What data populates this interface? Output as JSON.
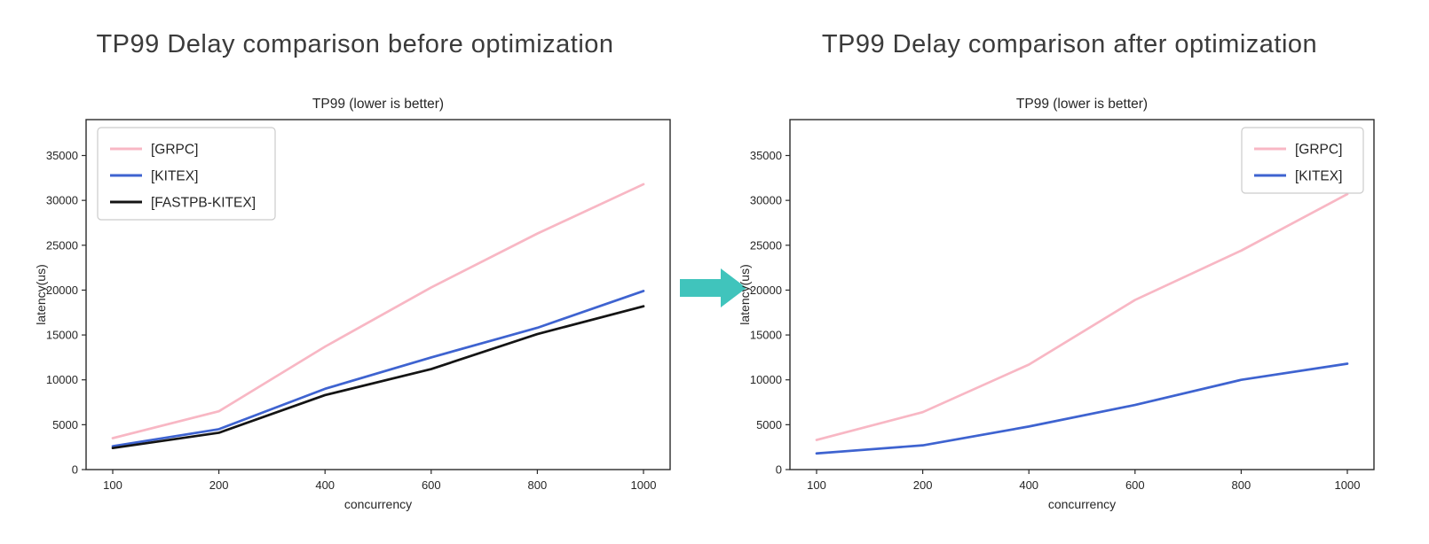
{
  "page": {
    "background": "#ffffff",
    "heading_color": "#3b3b3b"
  },
  "arrow": {
    "description": "right-pointing block arrow between the two charts",
    "color": "#40c4bc"
  },
  "chart_data": [
    {
      "type": "line",
      "heading": "TP99 Delay comparison before optimization",
      "title": "TP99 (lower is better)",
      "xlabel": "concurrency",
      "ylabel": "latency(us)",
      "categories": [
        100,
        200,
        400,
        600,
        800,
        1000
      ],
      "series": [
        {
          "name": "[GRPC]",
          "color": "#f8b7c4",
          "values": [
            3500,
            6500,
            13700,
            20300,
            26300,
            31800
          ]
        },
        {
          "name": "[KITEX]",
          "color": "#3e63d0",
          "values": [
            2600,
            4500,
            9000,
            12500,
            15800,
            19900
          ]
        },
        {
          "name": "[FASTPB-KITEX]",
          "color": "#141414",
          "values": [
            2400,
            4100,
            8300,
            11200,
            15100,
            18200
          ]
        }
      ],
      "ylim": [
        0,
        39000
      ],
      "y_ticks": [
        0,
        5000,
        10000,
        15000,
        20000,
        25000,
        30000,
        35000
      ],
      "x_tick_labels": [
        "100",
        "200",
        "400",
        "600",
        "800",
        "1000"
      ],
      "grid": false,
      "legend_position": "upper-left"
    },
    {
      "type": "line",
      "heading": "TP99 Delay comparison after optimization",
      "title": "TP99 (lower is better)",
      "xlabel": "concurrency",
      "ylabel": "latency(us)",
      "categories": [
        100,
        200,
        400,
        600,
        800,
        1000
      ],
      "series": [
        {
          "name": "[GRPC]",
          "color": "#f8b7c4",
          "values": [
            3300,
            6400,
            11700,
            18900,
            24400,
            30700
          ]
        },
        {
          "name": "[KITEX]",
          "color": "#3e63d0",
          "values": [
            1800,
            2700,
            4800,
            7200,
            10000,
            11800
          ]
        }
      ],
      "ylim": [
        0,
        39000
      ],
      "y_ticks": [
        0,
        5000,
        10000,
        15000,
        20000,
        25000,
        30000,
        35000
      ],
      "x_tick_labels": [
        "100",
        "200",
        "400",
        "600",
        "800",
        "1000"
      ],
      "grid": false,
      "legend_position": "upper-right"
    }
  ]
}
